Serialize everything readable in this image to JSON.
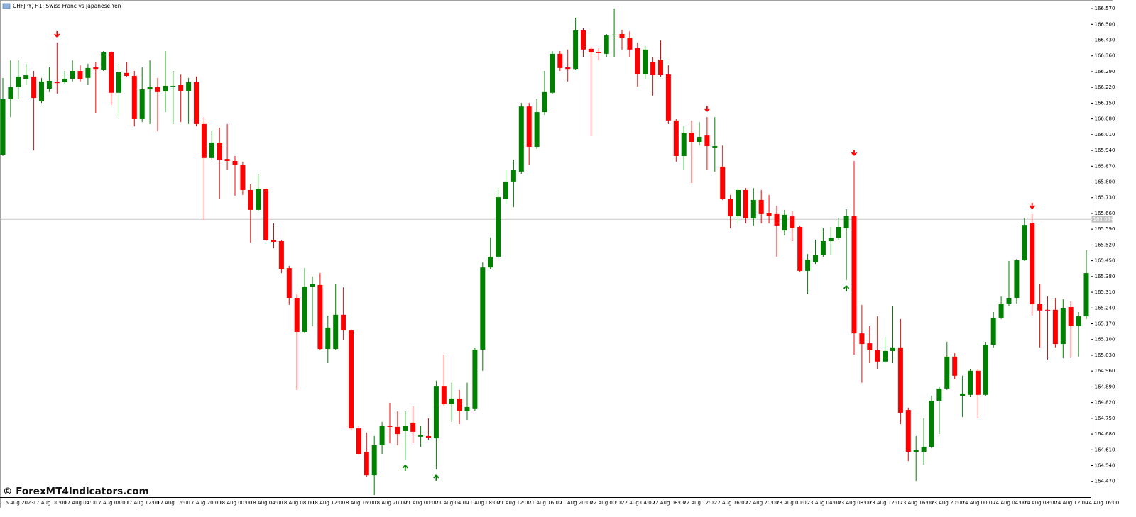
{
  "chart_data": {
    "type": "candlestick",
    "title": "CHFJPY, H1:  Swiss Franc vs Japanese Yen",
    "watermark": "© ForexMT4Indicators.com",
    "up_color": "#008000",
    "down_color": "#ff0000",
    "grid": false,
    "current_price": 165.634,
    "ylim": [
      164.403,
      166.608
    ],
    "yticks": [
      {
        "value": 166.57,
        "label": "166.570"
      },
      {
        "value": 166.5,
        "label": "166.500"
      },
      {
        "value": 166.43,
        "label": "166.430"
      },
      {
        "value": 166.36,
        "label": "166.360"
      },
      {
        "value": 166.29,
        "label": "166.290"
      },
      {
        "value": 166.22,
        "label": "166.220"
      },
      {
        "value": 166.15,
        "label": "166.150"
      },
      {
        "value": 166.08,
        "label": "166.080"
      },
      {
        "value": 166.01,
        "label": "166.010"
      },
      {
        "value": 165.94,
        "label": "165.940"
      },
      {
        "value": 165.87,
        "label": "165.870"
      },
      {
        "value": 165.8,
        "label": "165.800"
      },
      {
        "value": 165.73,
        "label": "165.730"
      },
      {
        "value": 165.66,
        "label": "165.660"
      },
      {
        "value": 165.59,
        "label": "165.590"
      },
      {
        "value": 165.52,
        "label": "165.520"
      },
      {
        "value": 165.45,
        "label": "165.450"
      },
      {
        "value": 165.38,
        "label": "165.380"
      },
      {
        "value": 165.31,
        "label": "165.310"
      },
      {
        "value": 165.24,
        "label": "165.240"
      },
      {
        "value": 165.17,
        "label": "165.170"
      },
      {
        "value": 165.1,
        "label": "165.100"
      },
      {
        "value": 165.03,
        "label": "165.030"
      },
      {
        "value": 164.96,
        "label": "164.960"
      },
      {
        "value": 164.89,
        "label": "164.890"
      },
      {
        "value": 164.82,
        "label": "164.820"
      },
      {
        "value": 164.75,
        "label": "164.750"
      },
      {
        "value": 164.68,
        "label": "164.680"
      },
      {
        "value": 164.61,
        "label": "164.610"
      },
      {
        "value": 164.54,
        "label": "164.540"
      },
      {
        "value": 164.47,
        "label": "164.470"
      }
    ],
    "categories": [
      "16 Aug 2023",
      null,
      null,
      null,
      "17 Aug 00:00",
      null,
      null,
      null,
      "17 Aug 04:00",
      null,
      null,
      null,
      "17 Aug 08:00",
      null,
      null,
      null,
      "17 Aug 12:00",
      null,
      null,
      null,
      "17 Aug 16:00",
      null,
      null,
      null,
      "17 Aug 20:00",
      null,
      null,
      null,
      "18 Aug 00:00",
      null,
      null,
      null,
      "18 Aug 04:00",
      null,
      null,
      null,
      "18 Aug 08:00",
      null,
      null,
      null,
      "18 Aug 12:00",
      null,
      null,
      null,
      "18 Aug 16:00",
      null,
      null,
      null,
      "18 Aug 20:00",
      null,
      null,
      null,
      "21 Aug 00:00",
      null,
      null,
      null,
      "21 Aug 04:00",
      null,
      null,
      null,
      "21 Aug 08:00",
      null,
      null,
      null,
      "21 Aug 12:00",
      null,
      null,
      null,
      "21 Aug 16:00",
      null,
      null,
      null,
      "21 Aug 20:00",
      null,
      null,
      null,
      "22 Aug 00:00",
      null,
      null,
      null,
      "22 Aug 04:00",
      null,
      null,
      null,
      "22 Aug 08:00",
      null,
      null,
      null,
      "22 Aug 12:00",
      null,
      null,
      null,
      "22 Aug 16:00",
      null,
      null,
      null,
      "22 Aug 20:00",
      null,
      null,
      null,
      "23 Aug 00:00",
      null,
      null,
      null,
      "23 Aug 04:00",
      null,
      null,
      null,
      "23 Aug 08:00",
      null,
      null,
      null,
      "23 Aug 12:00",
      null,
      null,
      null,
      "23 Aug 16:00",
      null,
      null,
      null,
      "23 Aug 20:00",
      null,
      null,
      null,
      "24 Aug 00:00",
      null,
      null,
      null,
      "24 Aug 04:00",
      null,
      null,
      null,
      "24 Aug 08:00",
      null,
      null,
      null,
      "24 Aug 12:00",
      null,
      null,
      null,
      "24 Aug 16:00"
    ],
    "open": [
      165.921,
      166.167,
      166.221,
      166.258,
      166.268,
      166.158,
      166.214,
      166.243,
      166.243,
      166.258,
      166.293,
      166.262,
      166.309,
      166.299,
      166.375,
      166.196,
      166.284,
      166.271,
      166.079,
      166.211,
      166.221,
      166.202,
      166.224,
      166.23,
      166.205,
      166.243,
      166.057,
      165.906,
      165.975,
      165.902,
      165.893,
      165.877,
      165.764,
      165.676,
      165.77,
      165.543,
      165.537,
      165.417,
      165.285,
      165.134,
      165.335,
      165.342,
      165.058,
      165.058,
      165.21,
      165.14,
      164.705,
      164.601,
      164.497,
      164.63,
      164.718,
      164.712,
      164.693,
      164.731,
      164.668,
      164.671,
      164.661,
      164.894,
      164.813,
      164.838,
      164.781,
      164.791,
      165.055,
      165.42,
      165.468,
      165.726,
      165.802,
      165.846,
      166.135,
      165.956,
      166.11,
      166.196,
      166.369,
      166.309,
      166.302,
      166.473,
      166.391,
      166.378,
      166.369,
      166.451,
      166.457,
      166.441,
      166.394,
      166.28,
      166.331,
      166.343,
      166.277,
      166.073,
      165.915,
      166.019,
      165.978,
      166.006,
      165.953,
      165.868,
      165.726,
      165.647,
      165.764,
      165.638,
      165.72,
      165.663,
      165.657,
      165.584,
      165.647,
      165.6,
      165.405,
      165.443,
      165.474,
      165.537,
      165.55,
      165.594,
      165.65,
      165.127,
      165.083,
      165.052,
      165.002,
      165.049,
      165.065,
      164.787,
      164.601,
      164.601,
      164.623,
      164.828,
      164.882,
      165.024,
      164.85,
      164.854,
      164.961,
      164.854,
      165.077,
      165.197,
      165.26,
      165.285,
      165.452,
      165.616,
      165.257,
      165.232,
      165.232,
      165.08,
      165.244,
      165.159,
      165.203
    ],
    "high": [
      166.262,
      166.34,
      166.34,
      166.325,
      166.293,
      166.262,
      166.309,
      166.419,
      166.293,
      166.34,
      166.318,
      166.325,
      166.331,
      166.381,
      166.381,
      166.325,
      166.331,
      166.293,
      166.309,
      166.34,
      166.262,
      166.381,
      166.293,
      166.277,
      166.262,
      166.268,
      166.088,
      166.025,
      166.041,
      166.057,
      165.915,
      165.89,
      165.789,
      165.836,
      165.773,
      165.616,
      165.543,
      165.427,
      165.301,
      165.417,
      165.38,
      165.395,
      165.206,
      165.348,
      165.332,
      165.146,
      164.718,
      164.687,
      164.671,
      164.734,
      164.819,
      164.781,
      164.781,
      164.803,
      164.718,
      164.75,
      164.917,
      165.033,
      164.908,
      164.876,
      164.908,
      165.065,
      165.443,
      165.553,
      165.773,
      165.852,
      165.899,
      166.151,
      166.151,
      166.167,
      166.293,
      166.381,
      166.381,
      166.388,
      166.529,
      166.482,
      166.4,
      166.394,
      166.457,
      166.57,
      166.476,
      166.469,
      166.419,
      166.403,
      166.356,
      166.428,
      166.318,
      166.079,
      166.047,
      166.073,
      166.066,
      166.088,
      166.088,
      165.962,
      165.742,
      165.773,
      165.773,
      165.773,
      165.764,
      165.742,
      165.694,
      165.676,
      165.669,
      165.606,
      165.48,
      165.543,
      165.594,
      165.6,
      165.641,
      165.679,
      165.893,
      165.254,
      165.159,
      165.203,
      165.111,
      165.247,
      165.191,
      164.797,
      164.671,
      164.75,
      164.85,
      164.891,
      165.09,
      165.039,
      164.939,
      164.97,
      164.97,
      165.09,
      165.222,
      165.291,
      165.449,
      165.458,
      165.638,
      165.657,
      165.348,
      165.291,
      165.285,
      165.279,
      165.269,
      165.222,
      165.496
    ],
    "low": [
      165.915,
      166.088,
      166.167,
      166.23,
      165.94,
      166.151,
      166.199,
      166.192,
      166.236,
      166.246,
      166.246,
      166.23,
      166.104,
      166.293,
      166.142,
      166.088,
      166.268,
      166.047,
      166.066,
      166.057,
      166.025,
      166.11,
      166.057,
      166.066,
      166.057,
      166.047,
      165.632,
      165.899,
      165.726,
      165.852,
      165.739,
      165.742,
      165.531,
      165.672,
      165.537,
      165.506,
      165.395,
      165.254,
      164.876,
      165.127,
      165.159,
      165.052,
      164.995,
      165.052,
      165.096,
      164.699,
      164.586,
      164.491,
      164.409,
      164.592,
      164.639,
      164.63,
      164.567,
      164.639,
      164.623,
      164.655,
      164.523,
      164.806,
      164.734,
      164.724,
      164.743,
      164.781,
      164.961,
      165.411,
      165.458,
      165.701,
      165.688,
      165.836,
      165.877,
      165.947,
      166.098,
      166.192,
      166.293,
      166.246,
      166.299,
      166.356,
      166.003,
      166.34,
      166.356,
      166.356,
      166.388,
      166.356,
      166.224,
      166.255,
      166.183,
      166.268,
      166.057,
      165.89,
      165.852,
      165.795,
      165.962,
      165.852,
      165.846,
      165.72,
      165.594,
      165.613,
      165.616,
      165.606,
      165.616,
      165.616,
      165.468,
      165.562,
      165.537,
      165.398,
      165.301,
      165.436,
      165.468,
      165.474,
      165.543,
      165.364,
      165.033,
      164.908,
      164.995,
      164.97,
      164.995,
      164.995,
      164.724,
      164.56,
      164.472,
      164.545,
      164.617,
      164.68,
      164.876,
      164.923,
      164.756,
      164.844,
      164.75,
      164.85,
      165.065,
      165.191,
      165.247,
      165.26,
      165.449,
      165.206,
      165.065,
      165.011,
      165.065,
      165.017,
      165.017,
      165.024,
      165.191
    ],
    "close": [
      166.167,
      166.221,
      166.268,
      166.274,
      166.173,
      166.246,
      166.249,
      166.239,
      166.258,
      166.293,
      166.255,
      166.306,
      166.302,
      166.375,
      166.196,
      166.287,
      166.271,
      166.079,
      166.211,
      166.221,
      166.199,
      166.227,
      166.227,
      166.205,
      166.243,
      166.057,
      165.906,
      165.975,
      165.899,
      165.893,
      165.877,
      165.764,
      165.676,
      165.77,
      165.543,
      165.534,
      165.411,
      165.285,
      165.134,
      165.335,
      165.348,
      165.058,
      165.153,
      165.21,
      165.14,
      164.705,
      164.592,
      164.497,
      164.63,
      164.718,
      164.712,
      164.68,
      164.718,
      164.69,
      164.677,
      164.664,
      164.894,
      164.813,
      164.838,
      164.781,
      164.8,
      165.055,
      165.42,
      165.468,
      165.732,
      165.802,
      165.852,
      166.135,
      165.956,
      166.11,
      166.199,
      166.369,
      166.306,
      166.302,
      166.473,
      166.388,
      166.375,
      166.372,
      166.451,
      166.454,
      166.438,
      166.388,
      166.28,
      166.388,
      166.274,
      166.274,
      166.073,
      165.915,
      166.019,
      165.978,
      166.0,
      165.959,
      165.959,
      165.726,
      165.647,
      165.764,
      165.638,
      165.72,
      165.657,
      165.65,
      165.606,
      165.654,
      165.594,
      165.405,
      165.455,
      165.474,
      165.537,
      165.55,
      165.6,
      165.65,
      165.127,
      165.08,
      165.052,
      165.002,
      165.049,
      165.065,
      164.775,
      164.601,
      164.608,
      164.623,
      164.828,
      164.882,
      165.024,
      164.939,
      164.86,
      164.961,
      164.854,
      165.077,
      165.197,
      165.26,
      165.285,
      165.452,
      165.609,
      165.257,
      165.229,
      165.229,
      165.08,
      165.238,
      165.159,
      165.203,
      165.395
    ],
    "down_arrows": [
      7,
      91,
      110,
      133
    ],
    "up_arrows": [
      52,
      56,
      109
    ]
  }
}
